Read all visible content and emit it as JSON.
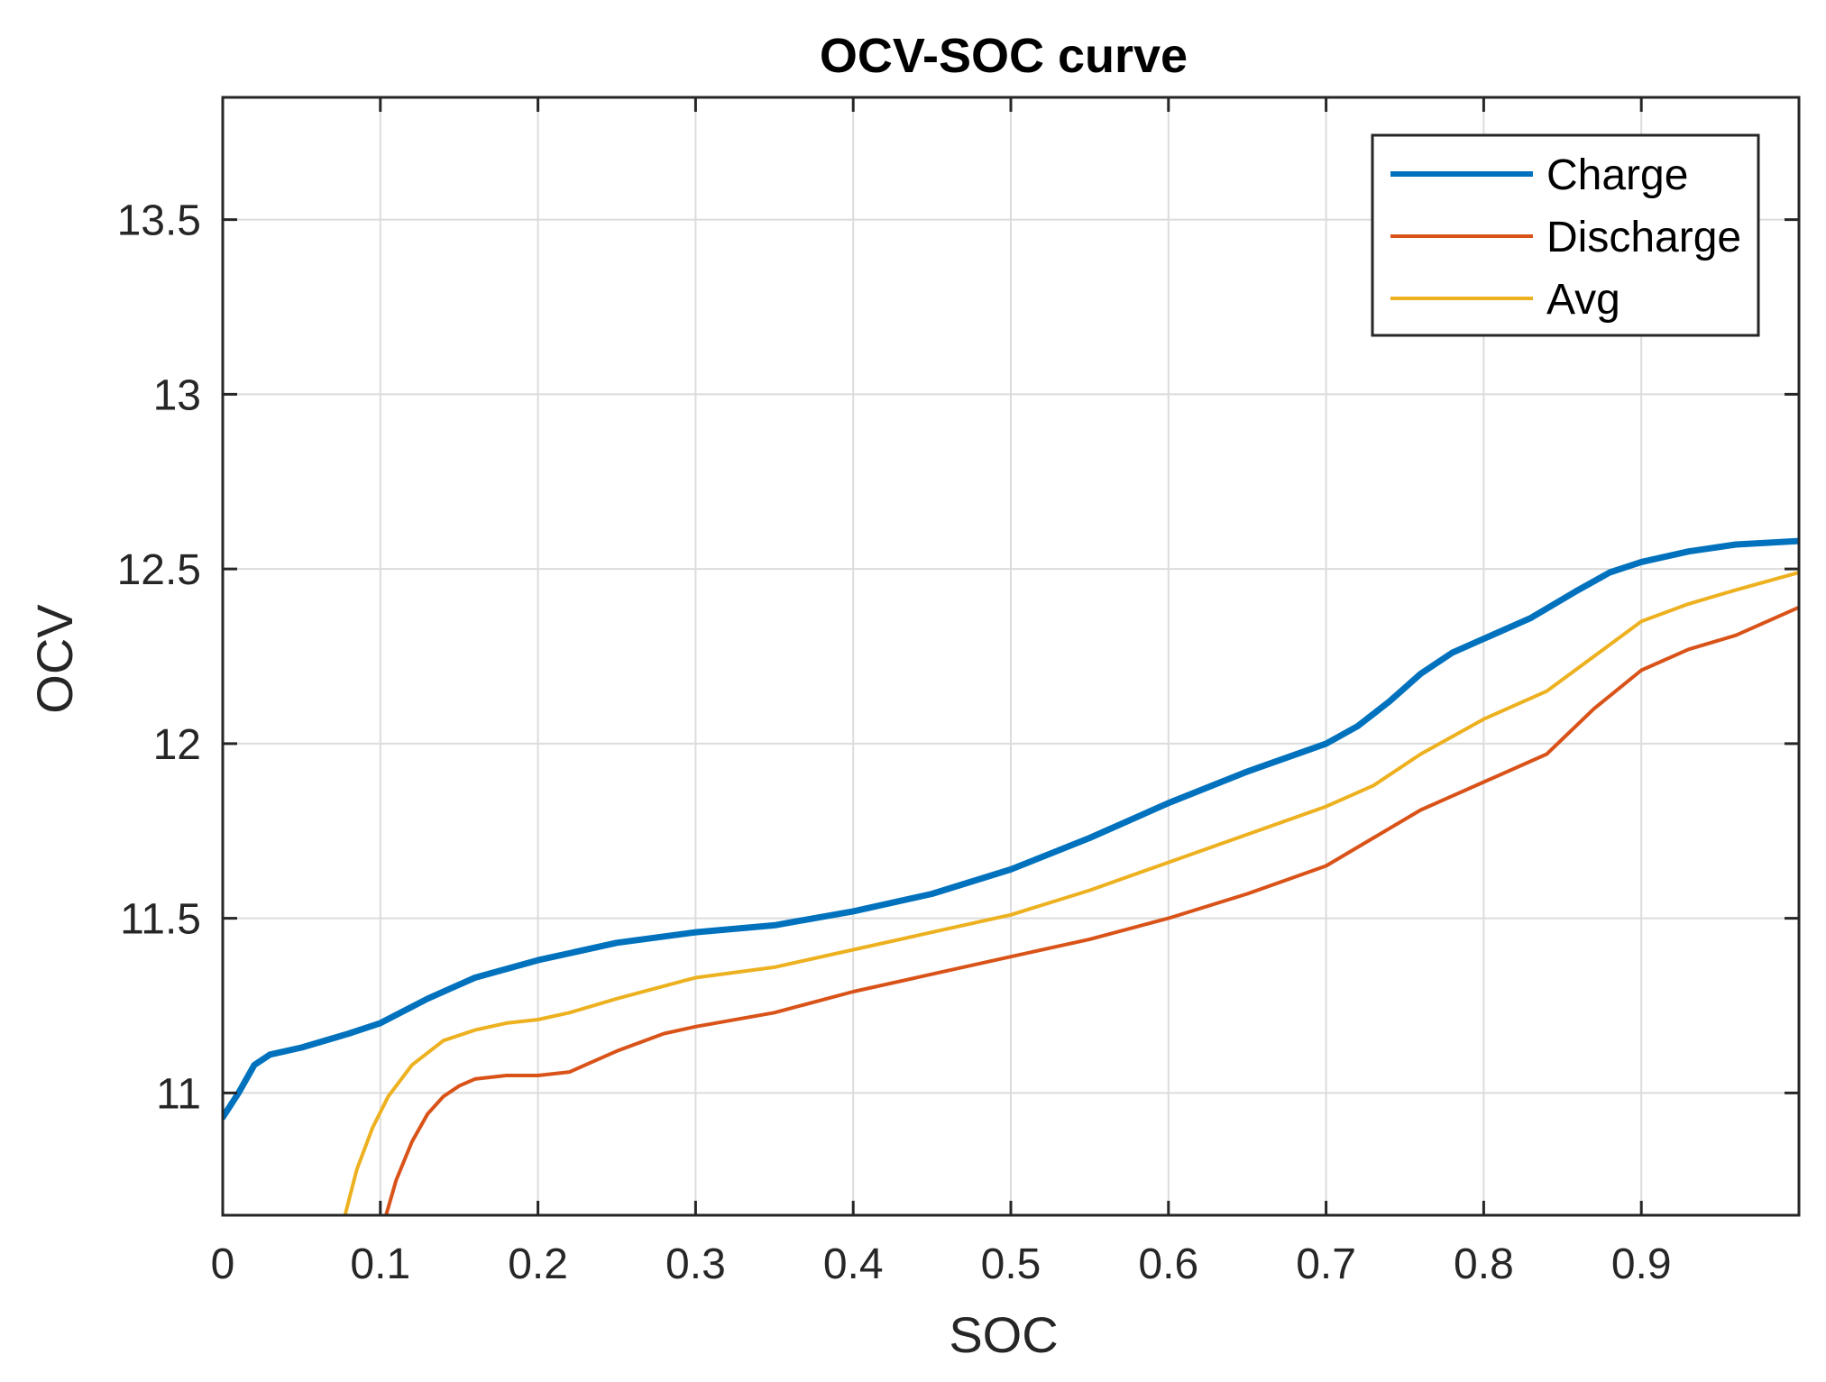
{
  "chart_data": {
    "type": "line",
    "title": "OCV-SOC curve",
    "xlabel": "SOC",
    "ylabel": "OCV",
    "xlim": [
      0,
      1
    ],
    "ylim": [
      10.65,
      13.85
    ],
    "grid": true,
    "legend_position": "top-right",
    "xticks": [
      0,
      0.1,
      0.2,
      0.3,
      0.4,
      0.5,
      0.6,
      0.7,
      0.8,
      0.9
    ],
    "xtick_labels": [
      "0",
      "0.1",
      "0.2",
      "0.3",
      "0.4",
      "0.5",
      "0.6",
      "0.7",
      "0.8",
      "0.9"
    ],
    "yticks": [
      11,
      11.5,
      12,
      12.5,
      13,
      13.5
    ],
    "ytick_labels": [
      "11",
      "11.5",
      "12",
      "12.5",
      "13",
      "13.5"
    ],
    "series": [
      {
        "name": "Charge",
        "color": "#0072BD",
        "x": [
          0,
          0.01,
          0.02,
          0.03,
          0.05,
          0.08,
          0.1,
          0.13,
          0.16,
          0.2,
          0.25,
          0.3,
          0.35,
          0.4,
          0.45,
          0.5,
          0.55,
          0.6,
          0.65,
          0.7,
          0.72,
          0.74,
          0.76,
          0.78,
          0.8,
          0.83,
          0.86,
          0.88,
          0.9,
          0.93,
          0.96,
          1.0
        ],
        "y": [
          10.93,
          11.0,
          11.08,
          11.11,
          11.13,
          11.17,
          11.2,
          11.27,
          11.33,
          11.38,
          11.43,
          11.46,
          11.48,
          11.52,
          11.57,
          11.64,
          11.73,
          11.83,
          11.92,
          12.0,
          12.05,
          12.12,
          12.2,
          12.26,
          12.3,
          12.36,
          12.44,
          12.49,
          12.52,
          12.55,
          12.57,
          12.58
        ]
      },
      {
        "name": "Discharge",
        "color": "#D95319",
        "x": [
          0.103,
          0.11,
          0.12,
          0.13,
          0.14,
          0.15,
          0.16,
          0.18,
          0.2,
          0.22,
          0.25,
          0.28,
          0.3,
          0.35,
          0.4,
          0.45,
          0.5,
          0.55,
          0.6,
          0.65,
          0.7,
          0.73,
          0.76,
          0.8,
          0.84,
          0.87,
          0.9,
          0.93,
          0.96,
          1.0
        ],
        "y": [
          10.64,
          10.75,
          10.86,
          10.94,
          10.99,
          11.02,
          11.04,
          11.05,
          11.05,
          11.06,
          11.12,
          11.17,
          11.19,
          11.23,
          11.29,
          11.34,
          11.39,
          11.44,
          11.5,
          11.57,
          11.65,
          11.73,
          11.81,
          11.89,
          11.97,
          12.1,
          12.21,
          12.27,
          12.31,
          12.39
        ]
      },
      {
        "name": "Avg",
        "color": "#EDB120",
        "x": [
          0.077,
          0.085,
          0.095,
          0.105,
          0.12,
          0.14,
          0.16,
          0.18,
          0.2,
          0.22,
          0.25,
          0.3,
          0.35,
          0.4,
          0.45,
          0.5,
          0.55,
          0.6,
          0.65,
          0.7,
          0.73,
          0.76,
          0.8,
          0.84,
          0.87,
          0.9,
          0.93,
          0.96,
          1.0
        ],
        "y": [
          10.64,
          10.78,
          10.9,
          10.99,
          11.08,
          11.15,
          11.18,
          11.2,
          11.21,
          11.23,
          11.27,
          11.33,
          11.36,
          11.41,
          11.46,
          11.51,
          11.58,
          11.66,
          11.74,
          11.82,
          11.88,
          11.97,
          12.07,
          12.15,
          12.25,
          12.35,
          12.4,
          12.44,
          12.49
        ]
      }
    ]
  }
}
